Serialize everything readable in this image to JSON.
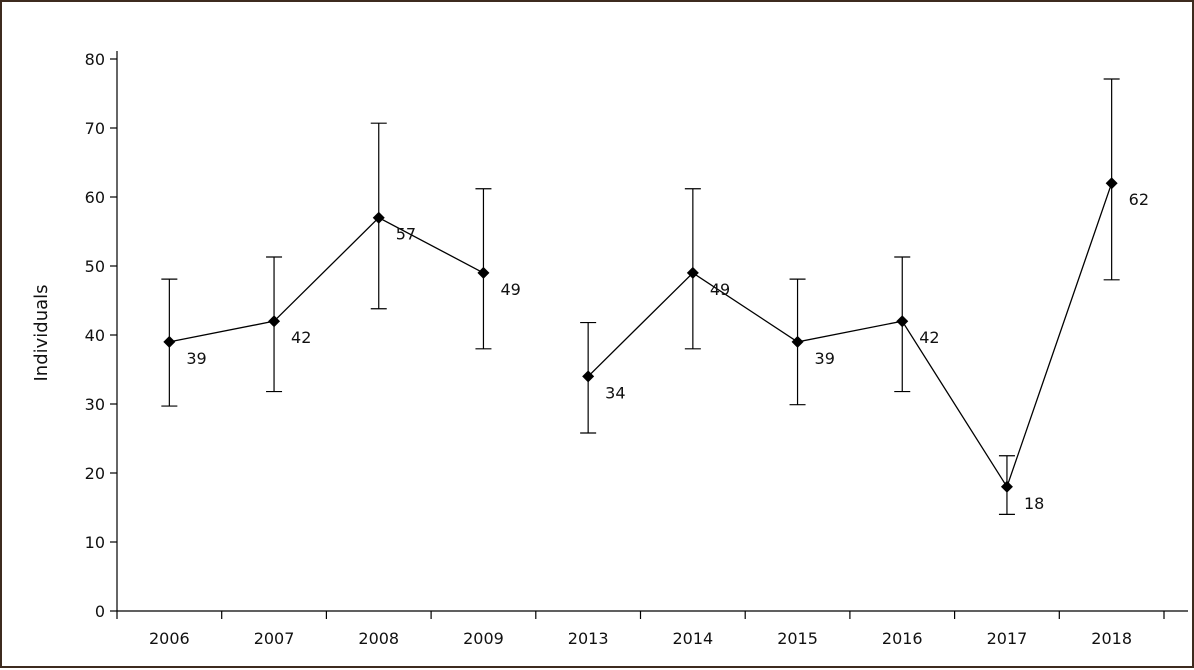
{
  "chart_data": {
    "type": "line",
    "title": "",
    "xlabel": "",
    "ylabel": "Individuals",
    "ylim": [
      0,
      80
    ],
    "yticks": [
      0,
      10,
      20,
      30,
      40,
      50,
      60,
      70,
      80
    ],
    "grid": false,
    "categories": [
      "2006",
      "2007",
      "2008",
      "2009",
      "2013",
      "2014",
      "2015",
      "2016",
      "2017",
      "2018"
    ],
    "values": [
      39,
      42,
      57,
      49,
      34,
      49,
      39,
      42,
      18,
      62
    ],
    "error_low": [
      29.7,
      31.8,
      43.8,
      38,
      25.8,
      38,
      29.9,
      31.8,
      14,
      48
    ],
    "error_high": [
      48.1,
      51.3,
      70.7,
      61.2,
      41.8,
      61.2,
      48.1,
      51.3,
      22.5,
      77.1
    ],
    "point_labels": [
      "39",
      "42",
      "57",
      "49",
      "34",
      "49",
      "39",
      "42",
      "18",
      "62"
    ],
    "segments": [
      [
        0,
        3
      ],
      [
        4,
        9
      ]
    ],
    "marker": "diamond",
    "color": "#000000"
  }
}
